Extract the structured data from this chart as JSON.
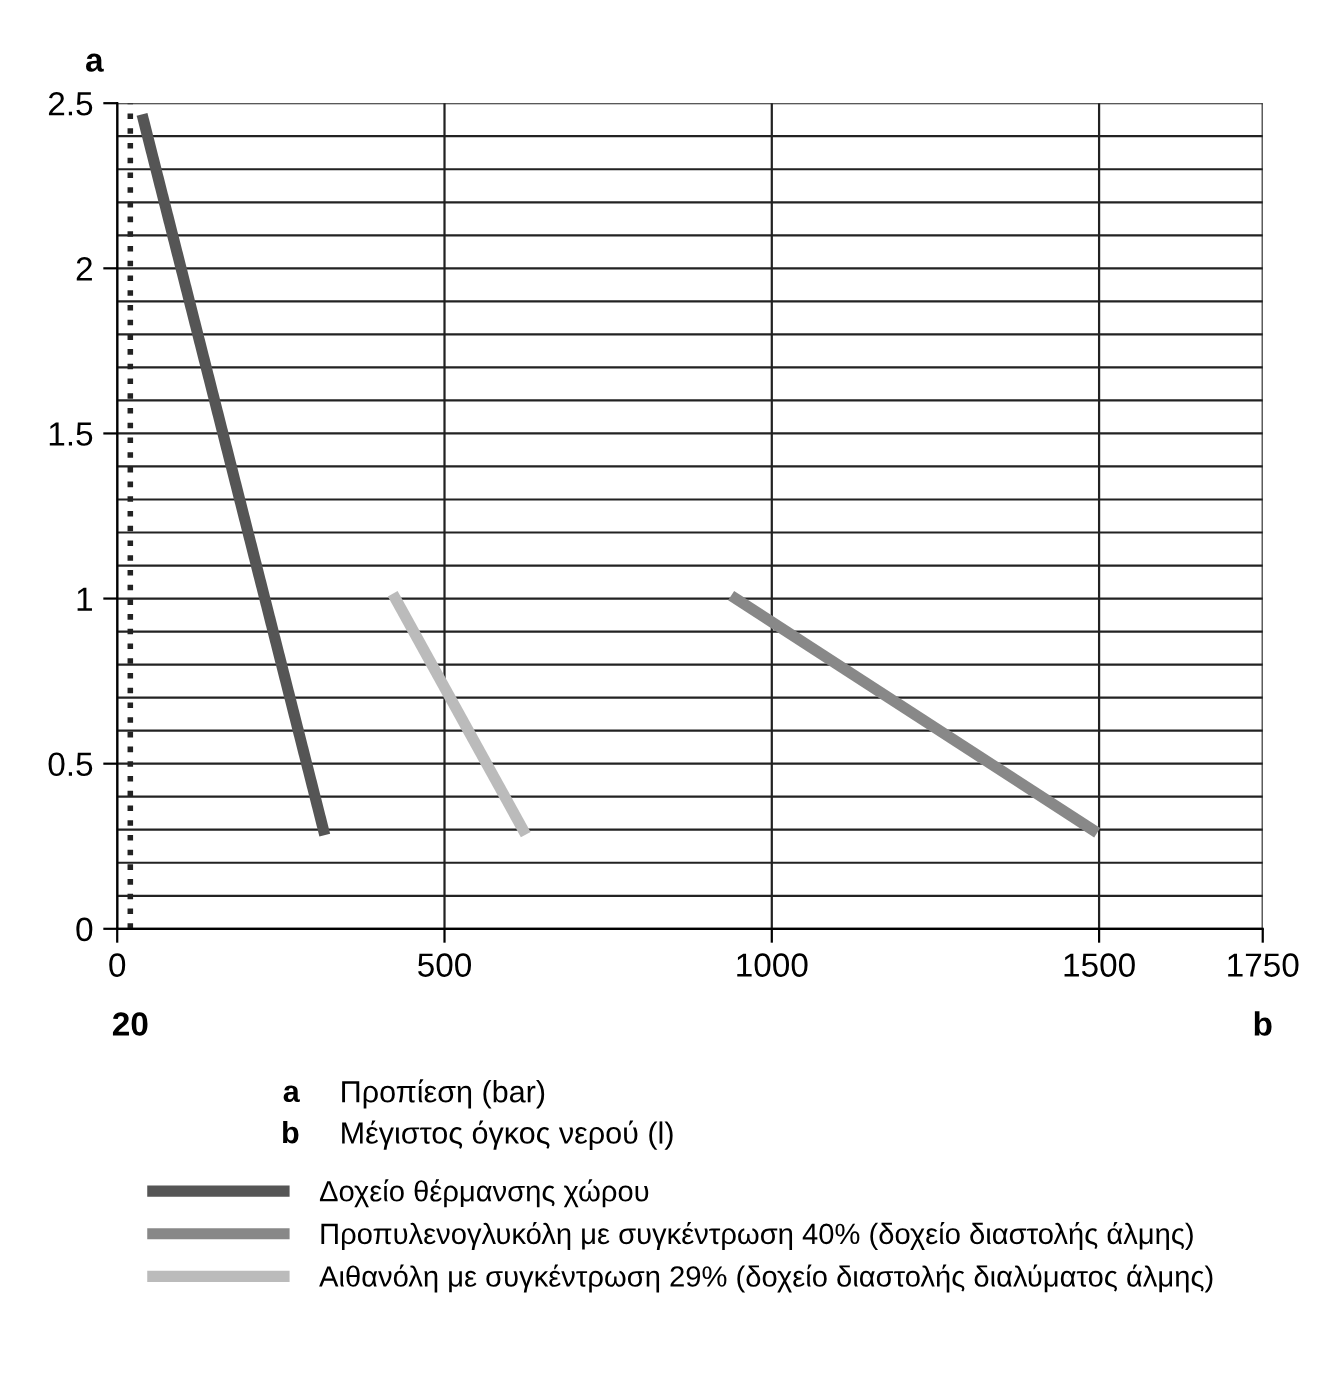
{
  "chart_data": {
    "type": "line",
    "xlabel": "b",
    "ylabel": "a",
    "xlim": [
      0,
      1750
    ],
    "xticks": [
      0,
      500,
      1000,
      1500,
      1750
    ],
    "ylim": [
      0,
      2.5
    ],
    "yticks": [
      0,
      {
        "value": 0.1,
        "label": null
      },
      {
        "value": 0.2,
        "label": null
      },
      {
        "value": 0.3,
        "label": null
      },
      {
        "value": 0.4,
        "label": null
      },
      0.5,
      {
        "value": 0.6,
        "label": null
      },
      {
        "value": 0.7,
        "label": null
      },
      {
        "value": 0.8,
        "label": null
      },
      {
        "value": 0.9,
        "label": null
      },
      1,
      {
        "value": 1.1,
        "label": null
      },
      {
        "value": 1.2,
        "label": null
      },
      {
        "value": 1.3,
        "label": null
      },
      {
        "value": 1.4,
        "label": null
      },
      1.5,
      {
        "value": 1.6,
        "label": null
      },
      {
        "value": 1.7,
        "label": null
      },
      {
        "value": 1.8,
        "label": null
      },
      {
        "value": 1.9,
        "label": null
      },
      2,
      {
        "value": 2.1,
        "label": null
      },
      {
        "value": 2.2,
        "label": null
      },
      {
        "value": 2.3,
        "label": null
      },
      {
        "value": 2.4,
        "label": null
      },
      2.5
    ],
    "grid": true,
    "legend": "bottom",
    "marker": "none",
    "line_style": "solid",
    "ref_lines": [
      {
        "axis": "x",
        "value": 20,
        "label": "20",
        "color": "#222222",
        "line_style": "dotted"
      }
    ],
    "series": [
      {
        "name": "Δοχείο θέρμανσης χώρου",
        "color": "#555555",
        "x": [
          40,
          315
        ],
        "values": [
          2.45,
          0.3
        ]
      },
      {
        "name": "Προπυλενογλυκόλη με συγκέντρωση 40% (δοχείο διαστολής άλμης)",
        "color": "#888888",
        "x": [
          945,
          1490
        ],
        "values": [
          1,
          0.3
        ]
      },
      {
        "name": "Αιθανόλη με συγκέντρωση 29% (δοχείο διαστολής διαλύματος άλμης)",
        "color": "#bbbbbb",
        "x": [
          425,
          620
        ],
        "values": [
          1,
          0.3
        ]
      }
    ],
    "annotations": [
      "a Προπίεση (bar)",
      "b Μέγιστος όγκος νερού (l)"
    ]
  }
}
